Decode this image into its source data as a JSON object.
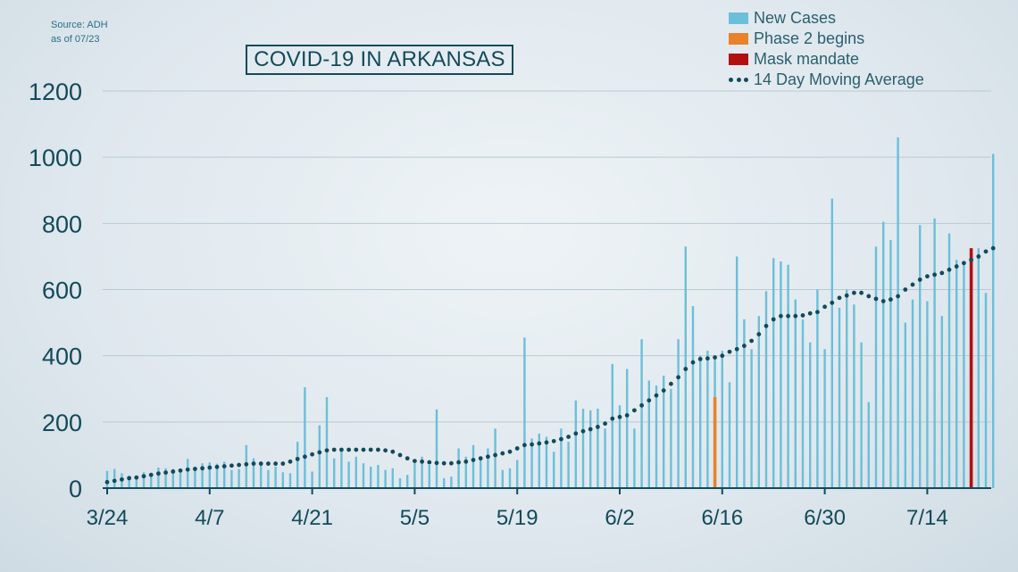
{
  "source": {
    "line1": "Source: ADH",
    "line2": "as of 07/23"
  },
  "colors": {
    "bar": "#6bbfd9",
    "phase2": "#e8832b",
    "mask": "#b40f0f",
    "avg": "#134a5a",
    "axis_text": "#134a5a",
    "grid": "#b9cad4"
  },
  "legend": {
    "new_cases": "New Cases",
    "phase2": "Phase 2 begins",
    "mask": "Mask mandate",
    "avg": "14 Day Moving Average"
  },
  "chart_data": {
    "type": "bar",
    "title": "COVID-19 IN ARKANSAS",
    "xlabel": "",
    "ylabel": "",
    "ylim": [
      0,
      1200
    ],
    "yticks": [
      "0",
      "200",
      "400",
      "600",
      "800",
      "1000",
      "1200"
    ],
    "ytick_values": [
      0,
      200,
      400,
      600,
      800,
      1000,
      1200
    ],
    "grid": true,
    "legend_position": "top-right",
    "x_start_date": "3/24",
    "xticks": [
      {
        "label": "3/24",
        "day": 0
      },
      {
        "label": "4/7",
        "day": 14
      },
      {
        "label": "4/21",
        "day": 28
      },
      {
        "label": "5/5",
        "day": 42
      },
      {
        "label": "5/19",
        "day": 56
      },
      {
        "label": "6/2",
        "day": 70
      },
      {
        "label": "6/16",
        "day": 84
      },
      {
        "label": "6/30",
        "day": 98
      },
      {
        "label": "7/14",
        "day": 112
      }
    ],
    "series": [
      {
        "name": "New Cases",
        "values": [
          52,
          58,
          45,
          38,
          30,
          48,
          45,
          62,
          60,
          58,
          55,
          88,
          65,
          75,
          78,
          74,
          80,
          55,
          58,
          130,
          90,
          78,
          55,
          65,
          48,
          45,
          140,
          305,
          50,
          190,
          275,
          90,
          110,
          80,
          95,
          75,
          65,
          70,
          55,
          60,
          30,
          40,
          75,
          95,
          70,
          238,
          30,
          35,
          120,
          95,
          130,
          85,
          120,
          180,
          55,
          60,
          85,
          455,
          150,
          165,
          155,
          110,
          180,
          140,
          265,
          240,
          235,
          240,
          180,
          375,
          250,
          360,
          180,
          450,
          325,
          310,
          340,
          300,
          450,
          730,
          550,
          400,
          415,
          395,
          415,
          320,
          700,
          510,
          420,
          520,
          595,
          695,
          685,
          675,
          570,
          510,
          440,
          600,
          420,
          875,
          545,
          600,
          555,
          440,
          260,
          730,
          805,
          750,
          1060,
          500,
          570,
          795,
          565,
          815,
          520,
          770,
          690,
          680,
          610,
          725,
          590,
          1010
        ],
        "color_key": "bar"
      },
      {
        "name": "14 Day Moving Average",
        "values": [
          18,
          22,
          26,
          30,
          32,
          36,
          40,
          44,
          47,
          50,
          53,
          56,
          58,
          60,
          62,
          64,
          66,
          68,
          70,
          72,
          74,
          74,
          74,
          74,
          74,
          80,
          88,
          95,
          102,
          108,
          114,
          116,
          116,
          116,
          116,
          116,
          116,
          116,
          114,
          110,
          100,
          90,
          82,
          80,
          78,
          76,
          75,
          75,
          78,
          80,
          85,
          90,
          95,
          100,
          105,
          110,
          120,
          130,
          132,
          135,
          138,
          142,
          148,
          155,
          165,
          172,
          178,
          185,
          195,
          210,
          215,
          220,
          235,
          250,
          265,
          280,
          295,
          315,
          335,
          360,
          380,
          390,
          392,
          395,
          400,
          412,
          420,
          430,
          445,
          465,
          490,
          510,
          520,
          520,
          520,
          522,
          528,
          532,
          548,
          560,
          575,
          582,
          590,
          590,
          580,
          572,
          565,
          570,
          580,
          600,
          615,
          630,
          640,
          645,
          650,
          660,
          670,
          680,
          690,
          700,
          715,
          725
        ]
      }
    ],
    "events": [
      {
        "name": "Phase 2 begins",
        "day": 83,
        "value": 275,
        "color_key": "phase2"
      },
      {
        "name": "Mask mandate",
        "day": 118,
        "value": 725,
        "color_key": "mask"
      }
    ]
  }
}
